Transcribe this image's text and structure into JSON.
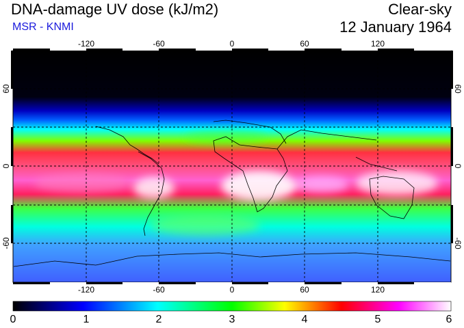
{
  "header": {
    "title": "DNA-damage UV dose (kJ/m2)",
    "subtitle": "MSR - KNMI",
    "sky_condition": "Clear-sky",
    "date": "12 January 1964"
  },
  "map": {
    "projection": "equirectangular",
    "lon_range": [
      -180,
      180
    ],
    "lat_range": [
      -90,
      90
    ],
    "lon_ticks": [
      "-120",
      "-60",
      "0",
      "60",
      "120"
    ],
    "lat_ticks": [
      "60",
      "0",
      "-60"
    ],
    "gridlines": "dashed",
    "colormap": [
      "#000000",
      "#0000ff",
      "#00ffff",
      "#00ff00",
      "#ffff00",
      "#ff0000",
      "#ff00ff",
      "#ffffff"
    ]
  },
  "colorbar": {
    "min": 0,
    "max": 6,
    "labels": [
      "0",
      "1",
      "2",
      "3",
      "4",
      "5",
      "6"
    ]
  }
}
